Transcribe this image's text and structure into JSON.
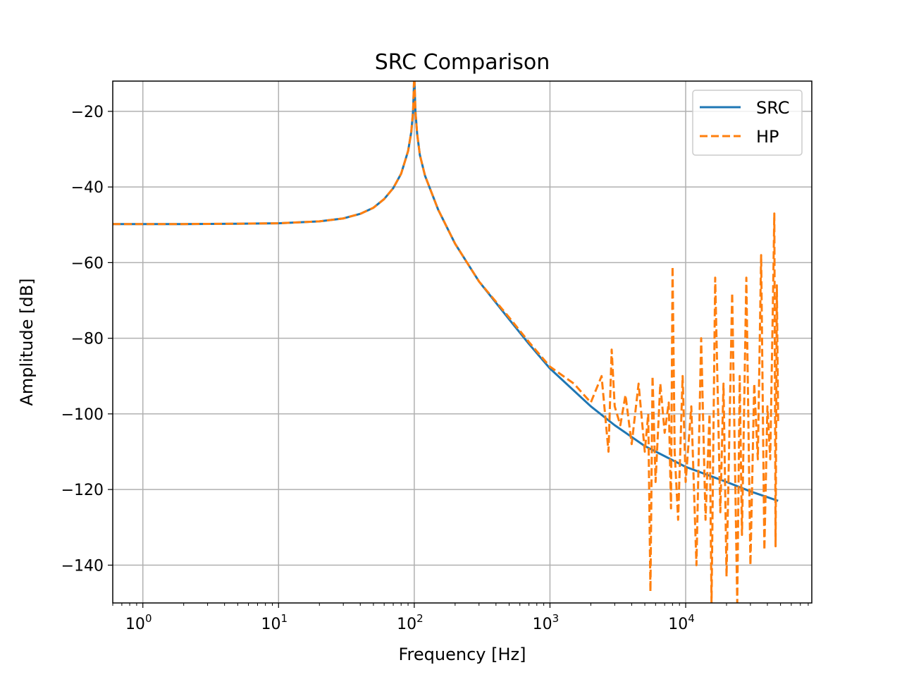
{
  "chart_data": {
    "type": "line",
    "title": "SRC Comparison",
    "xlabel": "Frequency [Hz]",
    "ylabel": "Amplitude [dB]",
    "xscale": "log",
    "xlim": [
      0.6,
      85000
    ],
    "ylim": [
      -150,
      -12
    ],
    "xticks": [
      {
        "value": 1,
        "base": "10",
        "exp": "0"
      },
      {
        "value": 10,
        "base": "10",
        "exp": "1"
      },
      {
        "value": 100,
        "base": "10",
        "exp": "2"
      },
      {
        "value": 1000,
        "base": "10",
        "exp": "3"
      },
      {
        "value": 10000,
        "base": "10",
        "exp": "4"
      }
    ],
    "yticks": [
      {
        "value": -20,
        "label": "−20"
      },
      {
        "value": -40,
        "label": "−40"
      },
      {
        "value": -60,
        "label": "−60"
      },
      {
        "value": -80,
        "label": "−80"
      },
      {
        "value": -100,
        "label": "−100"
      },
      {
        "value": -120,
        "label": "−120"
      },
      {
        "value": -140,
        "label": "−140"
      }
    ],
    "grid": true,
    "legend": "upper right",
    "series": [
      {
        "name": "SRC",
        "color": "#1f77b4",
        "style": "solid",
        "x": [
          0.6,
          1,
          2,
          5,
          10,
          20,
          30,
          40,
          50,
          60,
          70,
          80,
          90,
          95,
          98,
          100,
          102,
          105,
          110,
          120,
          150,
          200,
          300,
          500,
          700,
          1000,
          2000,
          3000,
          5000,
          10000,
          20000,
          30000,
          48000
        ],
        "y": [
          -49.8,
          -49.8,
          -49.8,
          -49.7,
          -49.6,
          -49.1,
          -48.3,
          -47.1,
          -45.5,
          -43.2,
          -40.3,
          -36.5,
          -30.5,
          -25.5,
          -20.0,
          -10.5,
          -20.0,
          -26.0,
          -31.5,
          -37.0,
          -46.0,
          -55.0,
          -65.0,
          -75.0,
          -81.5,
          -88.0,
          -98.0,
          -103.0,
          -108.5,
          -114.0,
          -118.0,
          -120.5,
          -123.0
        ]
      },
      {
        "name": "HP",
        "color": "#ff7f0e",
        "style": "dashed",
        "x": [
          0.6,
          1,
          2,
          5,
          10,
          20,
          30,
          40,
          50,
          60,
          70,
          80,
          90,
          95,
          98,
          100,
          102,
          105,
          110,
          120,
          150,
          200,
          300,
          500,
          700,
          1000,
          1500,
          2000,
          2400,
          2700,
          2850,
          3000,
          3300,
          3600,
          4000,
          4500,
          5000,
          5300,
          5500,
          5700,
          6000,
          6500,
          7000,
          7500,
          7800,
          8000,
          8300,
          8800,
          9500,
          10000,
          11000,
          12000,
          13000,
          14000,
          15000,
          15500,
          16500,
          18000,
          19000,
          20000,
          22000,
          24000,
          25000,
          26000,
          28000,
          30000,
          32000,
          34000,
          36000,
          38000,
          40000,
          42000,
          44000,
          45000,
          46000,
          47000,
          48000
        ],
        "y": [
          -49.8,
          -49.8,
          -49.8,
          -49.7,
          -49.6,
          -49.1,
          -48.3,
          -47.1,
          -45.5,
          -43.2,
          -40.3,
          -36.5,
          -30.5,
          -25.5,
          -20.0,
          -9.5,
          -20.0,
          -26.0,
          -31.5,
          -37.0,
          -46.0,
          -55.0,
          -65.0,
          -74.5,
          -81.0,
          -87.5,
          -92.0,
          -97.0,
          -90.0,
          -110.0,
          -83.0,
          -98.0,
          -103.0,
          -95.0,
          -108.0,
          -92.0,
          -110.0,
          -100.0,
          -147.0,
          -90.0,
          -118.0,
          -92.0,
          -105.0,
          -97.0,
          -125.0,
          -61.0,
          -110.0,
          -128.0,
          -90.0,
          -118.0,
          -98.0,
          -140.0,
          -80.0,
          -128.0,
          -100.0,
          -150.0,
          -64.0,
          -126.0,
          -92.0,
          -143.0,
          -68.0,
          -150.0,
          -90.0,
          -132.0,
          -64.0,
          -140.0,
          -92.0,
          -112.0,
          -58.0,
          -136.0,
          -98.0,
          -112.0,
          -70.0,
          -47.0,
          -135.0,
          -66.0,
          -102.0
        ]
      }
    ]
  }
}
